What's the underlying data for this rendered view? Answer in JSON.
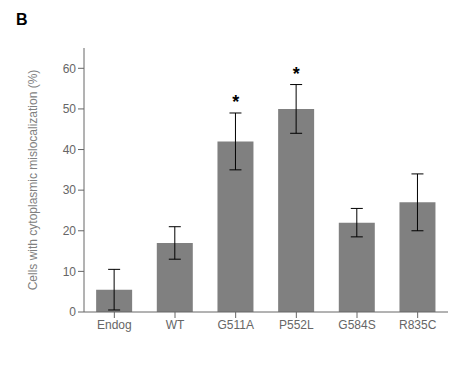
{
  "chart_data": {
    "type": "bar",
    "title": "B",
    "categories": [
      "Endog",
      "WT",
      "G511A",
      "P552L",
      "G584S",
      "R835C"
    ],
    "values": [
      5.5,
      17.0,
      42.0,
      50.0,
      22.0,
      27.0
    ],
    "errors": [
      5.0,
      4.0,
      7.0,
      6.0,
      3.5,
      7.0
    ],
    "color": "#808080",
    "ylabel": "Cells with cytoplasmic mislocalization (%)",
    "ylim": [
      0,
      65
    ],
    "yticks": [
      0,
      10,
      20,
      30,
      40,
      50,
      60
    ],
    "grid": false,
    "annotations": [
      {
        "text": "*",
        "category": "G511A"
      },
      {
        "text": "*",
        "category": "P552L"
      }
    ]
  }
}
